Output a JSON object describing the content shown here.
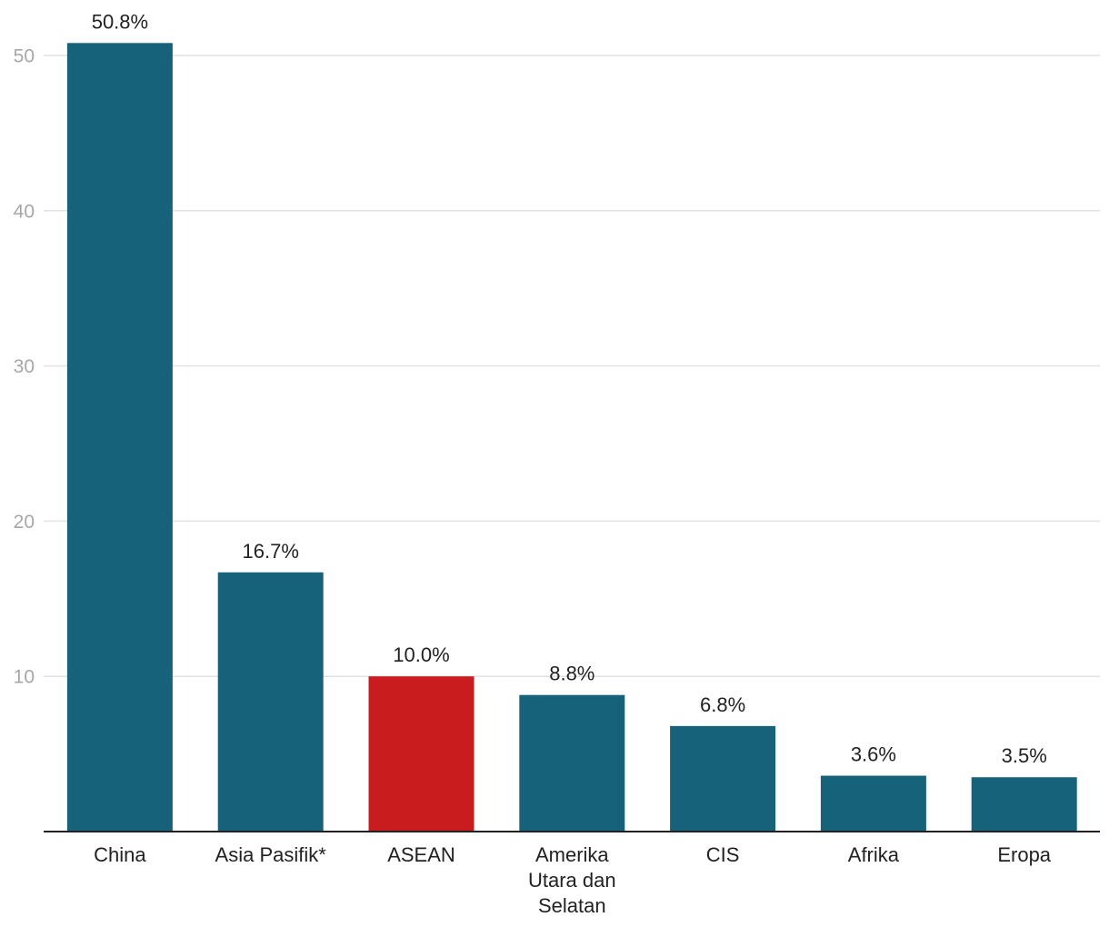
{
  "chart_data": {
    "type": "bar",
    "title": "",
    "xlabel": "",
    "ylabel": "",
    "ylim": [
      0,
      52
    ],
    "yticks": [
      10,
      20,
      30,
      40,
      50
    ],
    "grid": true,
    "categories": [
      [
        "China"
      ],
      [
        "Asia Pasifik*"
      ],
      [
        "ASEAN"
      ],
      [
        "Amerika",
        "Utara dan",
        "Selatan"
      ],
      [
        "CIS"
      ],
      [
        "Afrika"
      ],
      [
        "Eropa"
      ]
    ],
    "values": [
      50.8,
      16.7,
      10.0,
      8.8,
      6.8,
      3.6,
      3.5
    ],
    "value_labels": [
      "50.8%",
      "16.7%",
      "10.0%",
      "8.8%",
      "6.8%",
      "3.6%",
      "3.5%"
    ],
    "highlight_index": 2,
    "colors": {
      "bar": "#17627b",
      "highlight": "#c81c1f"
    }
  }
}
